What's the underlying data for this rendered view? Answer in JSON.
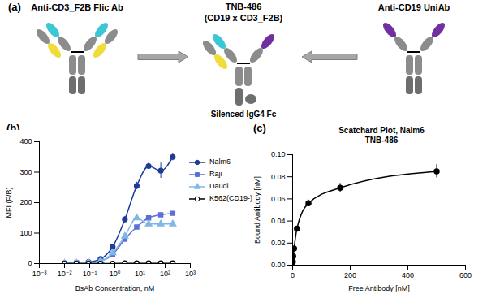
{
  "diagram": {
    "panel": "(a)",
    "nodes": [
      {
        "label": "Anti-CD3_F2B Flic Ab"
      },
      {
        "label": "TNB-486",
        "sublabel": "(CD19 x CD3_F2B)"
      },
      {
        "label": "Anti-CD19 UniAb"
      }
    ],
    "annotation": "Silenced IgG4 Fc"
  },
  "chart_data": [
    {
      "panel": "(b)",
      "type": "line",
      "x_label": "BsAb Concentration, nM",
      "y_label": "MFI (F/B)",
      "log": "x",
      "legend": "right",
      "xlim": [
        0.001,
        1000
      ],
      "xticks": [
        {
          "value": 0.001,
          "label": "10⁻³"
        },
        {
          "value": 0.01,
          "label": "10⁻²"
        },
        {
          "value": 0.1,
          "label": "10⁻¹"
        },
        {
          "value": 1,
          "label": "10⁰"
        },
        {
          "value": 10,
          "label": "10¹"
        },
        {
          "value": 100,
          "label": "10²"
        },
        {
          "value": 1000,
          "label": "10³"
        }
      ],
      "ylim": [
        0,
        400
      ],
      "yticks": [
        0,
        100,
        200,
        300,
        400
      ],
      "x": [
        0.01,
        0.03,
        0.09,
        0.27,
        0.82,
        2.5,
        7.4,
        22,
        67,
        200
      ],
      "series": [
        {
          "name": "Nalm6",
          "color": "#1f3c99",
          "marker": "circle",
          "values": [
            2,
            3,
            5,
            15,
            55,
            145,
            255,
            320,
            305,
            350
          ],
          "errors": [
            1,
            1,
            1,
            2,
            5,
            10,
            12,
            10,
            25,
            12
          ]
        },
        {
          "name": "Raji",
          "color": "#5b6fd6",
          "marker": "square",
          "values": [
            1,
            2,
            3,
            8,
            30,
            80,
            120,
            150,
            160,
            165
          ]
        },
        {
          "name": "Daudi",
          "color": "#7fb8e6",
          "marker": "triangle",
          "values": [
            1,
            2,
            3,
            8,
            35,
            90,
            150,
            130,
            130,
            130
          ]
        },
        {
          "name": "K562(CD19-)",
          "color": "#000000",
          "marker": "open_circle",
          "values": [
            0,
            0,
            0,
            0,
            0,
            1,
            1,
            1,
            1,
            1
          ]
        }
      ]
    },
    {
      "panel": "(c)",
      "type": "line",
      "title": "Scatchard Plot, Nalm6",
      "subtitle": "TNB-486",
      "x_label": "Free Antibody [nM]",
      "y_label": "Bound Antibody [nM]",
      "color": "#000000",
      "marker": "circle",
      "xlim": [
        0,
        600
      ],
      "xticks": [
        0,
        200,
        400,
        600
      ],
      "ylim": [
        0,
        0.1
      ],
      "yticks": [
        {
          "value": 0,
          "label": "0.00"
        },
        {
          "value": 0.02,
          "label": "0.02"
        },
        {
          "value": 0.04,
          "label": "0.04"
        },
        {
          "value": 0.06,
          "label": "0.06"
        },
        {
          "value": 0.08,
          "label": "0.08"
        },
        {
          "value": 0.1,
          "label": "0.10"
        }
      ],
      "x": [
        1,
        2,
        5,
        15,
        55,
        165,
        500
      ],
      "values": [
        0.003,
        0.008,
        0.015,
        0.033,
        0.056,
        0.07,
        0.085
      ],
      "errors": [
        0,
        0,
        0.001,
        0.002,
        0.003,
        0.004,
        0.006
      ]
    }
  ]
}
